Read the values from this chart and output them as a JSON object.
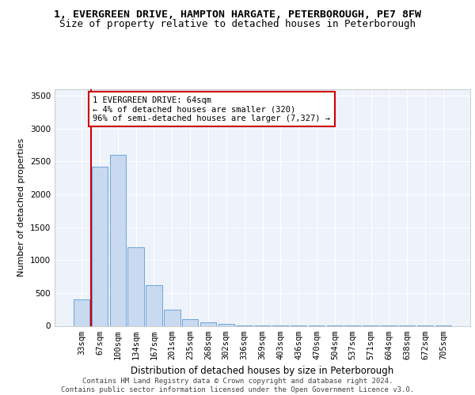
{
  "title_line1": "1, EVERGREEN DRIVE, HAMPTON HARGATE, PETERBOROUGH, PE7 8FW",
  "title_line2": "Size of property relative to detached houses in Peterborough",
  "xlabel": "Distribution of detached houses by size in Peterborough",
  "ylabel": "Number of detached properties",
  "footer_line1": "Contains HM Land Registry data © Crown copyright and database right 2024.",
  "footer_line2": "Contains public sector information licensed under the Open Government Licence v3.0.",
  "annotation_line1": "1 EVERGREEN DRIVE: 64sqm",
  "annotation_line2": "← 4% of detached houses are smaller (320)",
  "annotation_line3": "96% of semi-detached houses are larger (7,327) →",
  "bar_labels": [
    "33sqm",
    "67sqm",
    "100sqm",
    "134sqm",
    "167sqm",
    "201sqm",
    "235sqm",
    "268sqm",
    "302sqm",
    "336sqm",
    "369sqm",
    "403sqm",
    "436sqm",
    "470sqm",
    "504sqm",
    "537sqm",
    "571sqm",
    "604sqm",
    "638sqm",
    "672sqm",
    "705sqm"
  ],
  "bar_values": [
    400,
    2420,
    2600,
    1200,
    620,
    250,
    100,
    50,
    30,
    10,
    5,
    5,
    5,
    3,
    3,
    2,
    2,
    1,
    1,
    1,
    1
  ],
  "bar_color": "#c8d9f0",
  "bar_edgecolor": "#5b9bd5",
  "marker_color": "#cc0000",
  "ylim": [
    0,
    3600
  ],
  "yticks": [
    0,
    500,
    1000,
    1500,
    2000,
    2500,
    3000,
    3500
  ],
  "bg_color": "#edf2fb",
  "grid_color": "#ffffff",
  "annotation_box_color": "#cc0000",
  "title1_fontsize": 9.5,
  "title2_fontsize": 9,
  "footer_fontsize": 6.5,
  "axis_fontsize": 7.5,
  "ylabel_fontsize": 8,
  "xlabel_fontsize": 8.5
}
